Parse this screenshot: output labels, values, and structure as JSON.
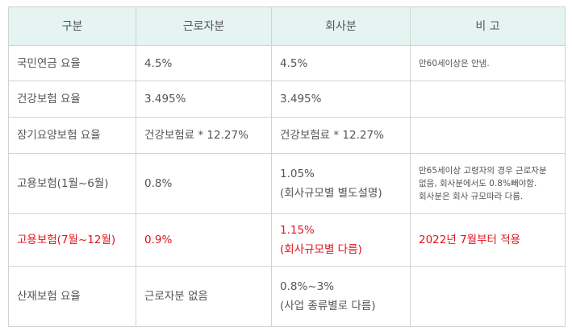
{
  "table": {
    "header": [
      "구분",
      "근로자분",
      "회사분",
      "비 고"
    ],
    "rows": [
      [
        "국민연금 요율",
        "4.5%",
        "4.5%",
        "만60세이상은 안냄."
      ],
      [
        "건강보험 요율",
        "3.495%",
        "3.495%"
      ],
      [
        "장기요양보험 요율",
        "건강보험료 * 12.27%",
        "건강보험료 * 12.27%"
      ],
      [
        "고용보험(1월~6월)",
        "0.8%",
        "1.05%\n(회사규모별 별도설명)",
        "만65세이상 고령자의 경우 근로자분\n없음, 회사분에서도 0.8%빼야함.\n회사분은 회사 규모따라 다름."
      ],
      [
        "고용보험(7월~12월)",
        "0.9%",
        "1.15%\n(회사규모별 다름)",
        "2022년 7월부터 적용"
      ],
      [
        "산재보험 요율",
        "근로자분 없음",
        "0.8%~3%\n(사업 종류별로 다름)"
      ]
    ]
  }
}
